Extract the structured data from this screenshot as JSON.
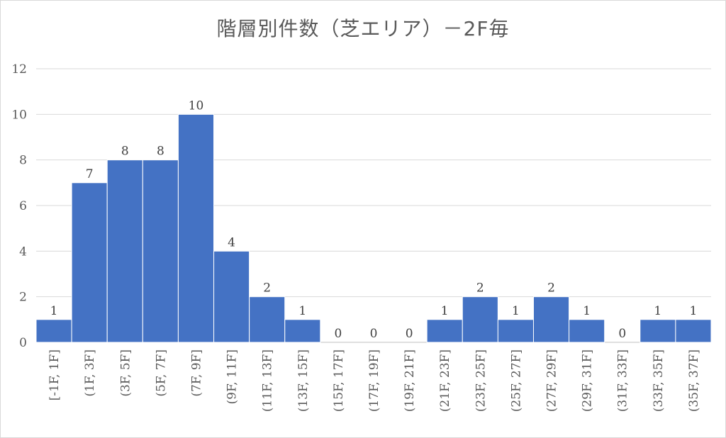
{
  "chart_data": {
    "type": "bar",
    "title": "階層別件数（芝エリア）－2F毎",
    "xlabel": "",
    "ylabel": "",
    "categories": [
      "[-1F, 1F]",
      "(1F, 3F]",
      "(3F, 5F]",
      "(5F, 7F]",
      "(7F, 9F]",
      "(9F, 11F]",
      "(11F, 13F]",
      "(13F, 15F]",
      "(15F, 17F]",
      "(17F, 19F]",
      "(19F, 21F]",
      "(21F, 23F]",
      "(23F, 25F]",
      "(25F, 27F]",
      "(27F, 29F]",
      "(29F, 31F]",
      "(31F, 33F]",
      "(33F, 35F]",
      "(35F, 37F]"
    ],
    "values": [
      1,
      7,
      8,
      8,
      10,
      4,
      2,
      1,
      0,
      0,
      0,
      1,
      2,
      1,
      2,
      1,
      0,
      1,
      1
    ],
    "ylim": [
      0,
      12
    ],
    "yticks": [
      0,
      2,
      4,
      6,
      8,
      10,
      12
    ],
    "grid": true,
    "legend": "none",
    "bar_color": "#4472c4",
    "grid_color": "#d9d9d9"
  }
}
